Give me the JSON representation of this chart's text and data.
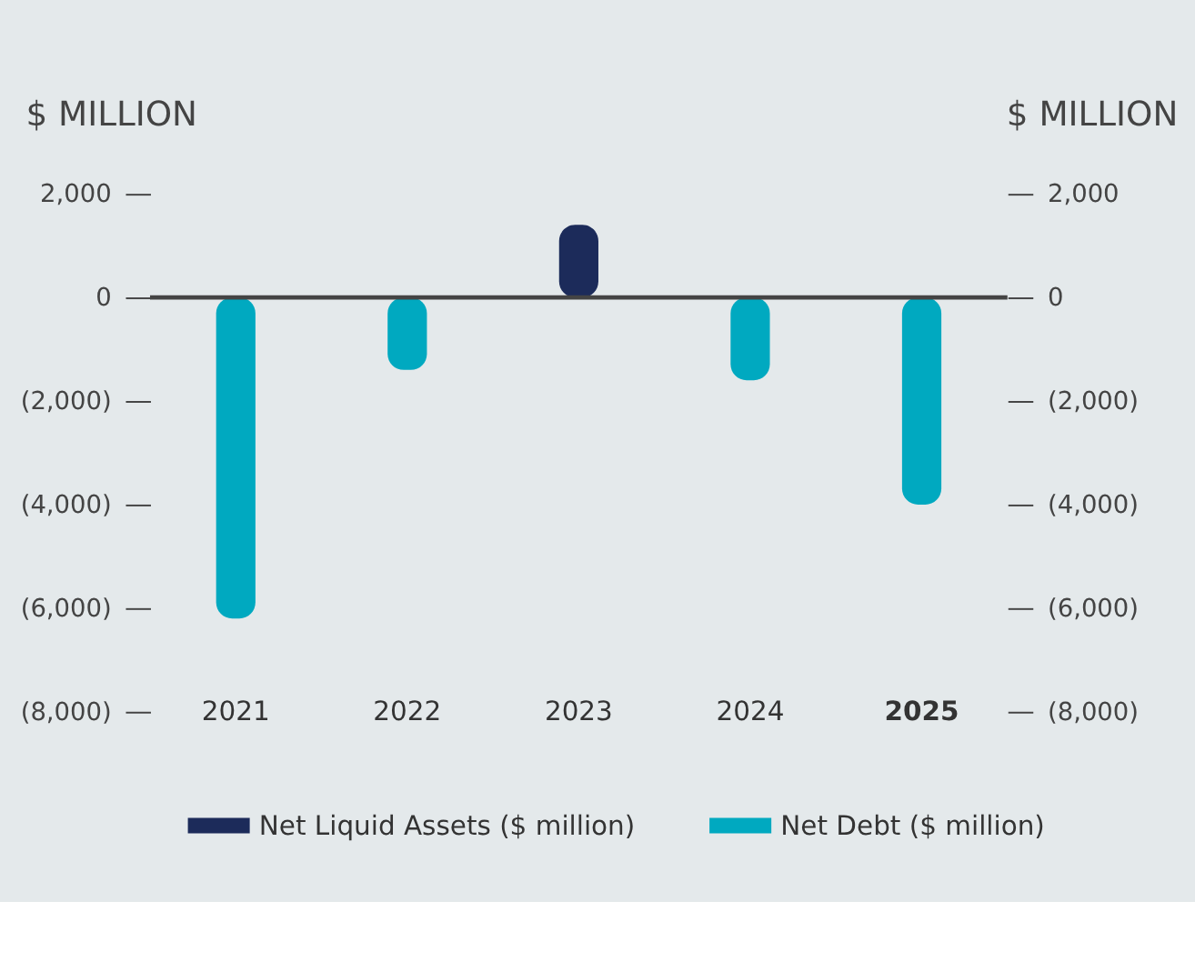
{
  "chart_data": {
    "type": "bar",
    "ylabel": "$ MILLION",
    "y2label": "$ MILLION",
    "categories": [
      "2021",
      "2022",
      "2023",
      "2024",
      "2025"
    ],
    "series": [
      {
        "name": "Net Liquid Assets ($ million)",
        "color": "#1c2b5a",
        "values": [
          null,
          null,
          1400,
          null,
          null
        ]
      },
      {
        "name": "Net Debt ($ million)",
        "color": "#00a9c0",
        "values": [
          -6200,
          -1400,
          null,
          -1600,
          -4000
        ]
      }
    ],
    "ylim": [
      -8000,
      2000
    ],
    "yticks": [
      {
        "value": 2000,
        "label": "2,000"
      },
      0,
      {
        "value": -2000,
        "label": "(2,000)"
      },
      {
        "value": -4000,
        "label": "(4,000)"
      },
      {
        "value": -6000,
        "label": "(6,000)"
      },
      {
        "value": -8000,
        "label": "(8,000)"
      }
    ],
    "y2lim": [
      -8000,
      2000
    ],
    "y2ticks": [
      {
        "value": 2000,
        "label": "2,000"
      },
      0,
      {
        "value": -2000,
        "label": "(2,000)"
      },
      {
        "value": -4000,
        "label": "(4,000)"
      },
      {
        "value": -6000,
        "label": "(6,000)"
      },
      {
        "value": -8000,
        "label": "(8,000)"
      }
    ],
    "ref_lines": [
      {
        "axis": "y",
        "value": 0,
        "color": "#444444"
      }
    ],
    "legend": "bottom",
    "grid": false
  }
}
